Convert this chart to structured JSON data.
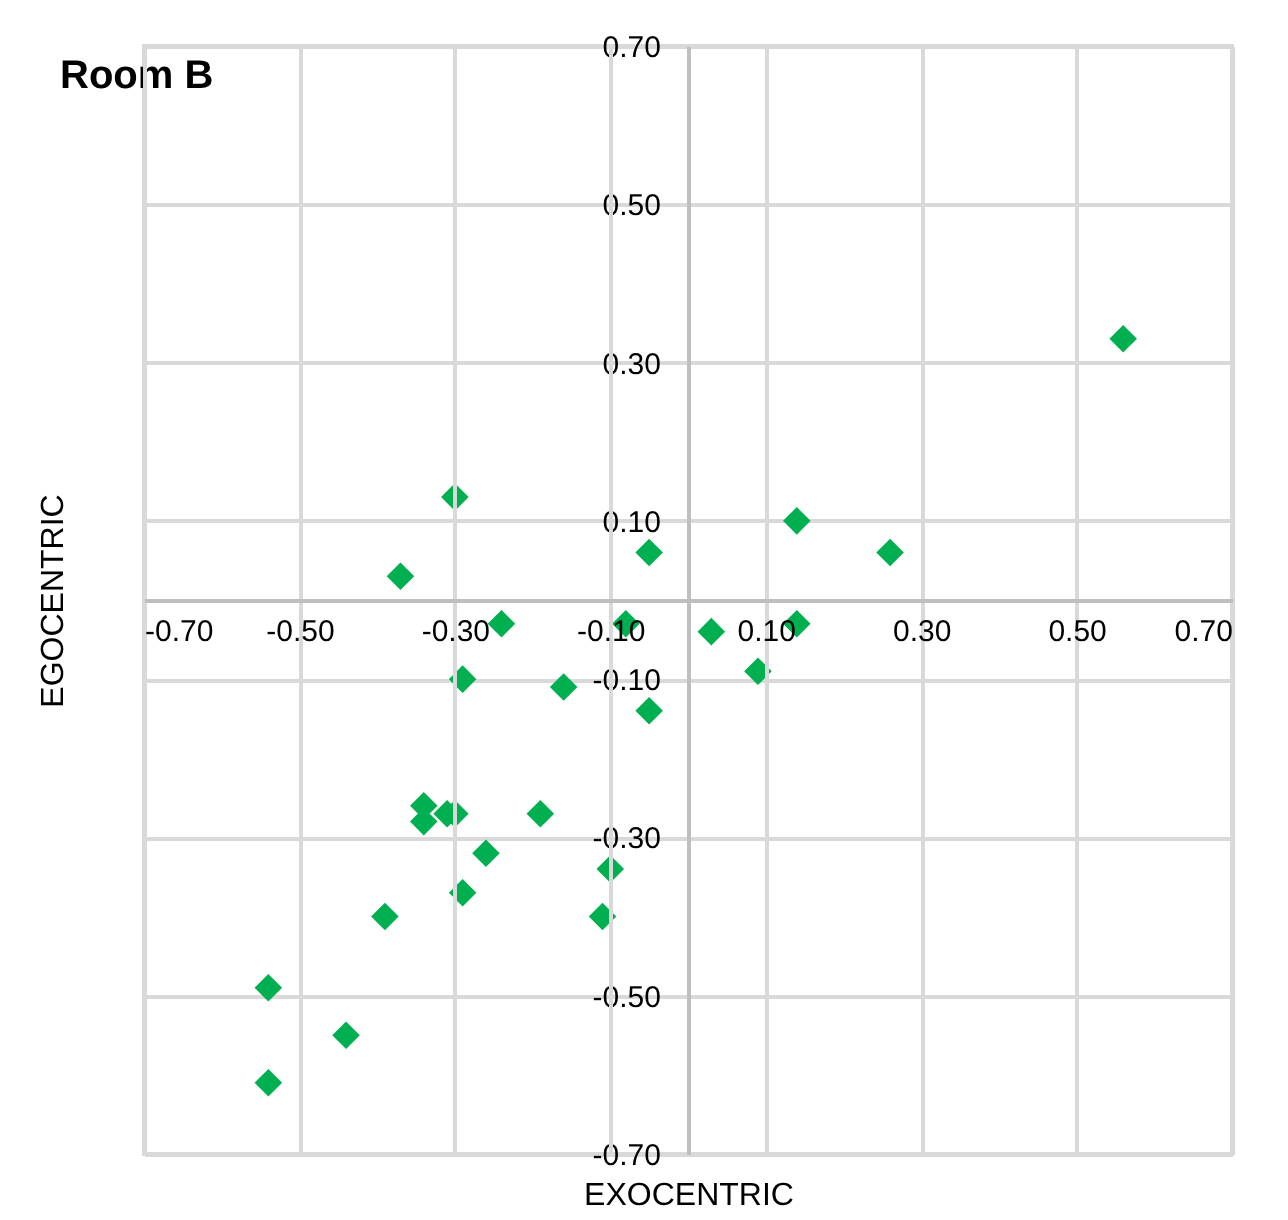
{
  "chart_data": {
    "type": "scatter",
    "title": "Room B",
    "xlabel": "EXOCENTRIC",
    "ylabel": "EGOCENTRIC",
    "marker": "diamond",
    "grid": true,
    "xlim": [
      -0.7,
      0.7
    ],
    "ylim": [
      -0.7,
      0.7
    ],
    "xticks": [
      {
        "value": -0.7,
        "label": "-0.70"
      },
      {
        "value": -0.5,
        "label": "-0.50"
      },
      {
        "value": -0.3,
        "label": "-0.30"
      },
      {
        "value": -0.1,
        "label": "-0.10"
      },
      {
        "value": 0.1,
        "label": "0.10"
      },
      {
        "value": 0.3,
        "label": "0.30"
      },
      {
        "value": 0.5,
        "label": "0.50"
      },
      {
        "value": 0.7,
        "label": "0.70"
      }
    ],
    "yticks": [
      {
        "value": -0.7,
        "label": "-0.70"
      },
      {
        "value": -0.5,
        "label": "-0.50"
      },
      {
        "value": -0.3,
        "label": "-0.30"
      },
      {
        "value": -0.1,
        "label": "-0.10"
      },
      {
        "value": 0.1,
        "label": "0.10"
      },
      {
        "value": 0.3,
        "label": "0.30"
      },
      {
        "value": 0.5,
        "label": "0.50"
      },
      {
        "value": 0.7,
        "label": "0.70"
      }
    ],
    "series": [
      {
        "color": "#00b050",
        "x": [
          0.56,
          -0.3,
          -0.37,
          -0.05,
          0.14,
          0.26,
          -0.24,
          -0.08,
          0.03,
          0.14,
          0.09,
          -0.29,
          -0.16,
          -0.05,
          -0.34,
          -0.34,
          -0.31,
          -0.3,
          -0.19,
          -0.26,
          -0.1,
          -0.29,
          -0.39,
          -0.11,
          -0.54,
          -0.44,
          -0.54
        ],
        "values": [
          0.33,
          0.13,
          0.03,
          0.06,
          0.1,
          0.06,
          -0.03,
          -0.03,
          -0.04,
          -0.03,
          -0.09,
          -0.1,
          -0.11,
          -0.14,
          -0.26,
          -0.28,
          -0.27,
          -0.27,
          -0.27,
          -0.32,
          -0.34,
          -0.37,
          -0.4,
          -0.4,
          -0.49,
          -0.55,
          -0.61
        ]
      }
    ]
  }
}
